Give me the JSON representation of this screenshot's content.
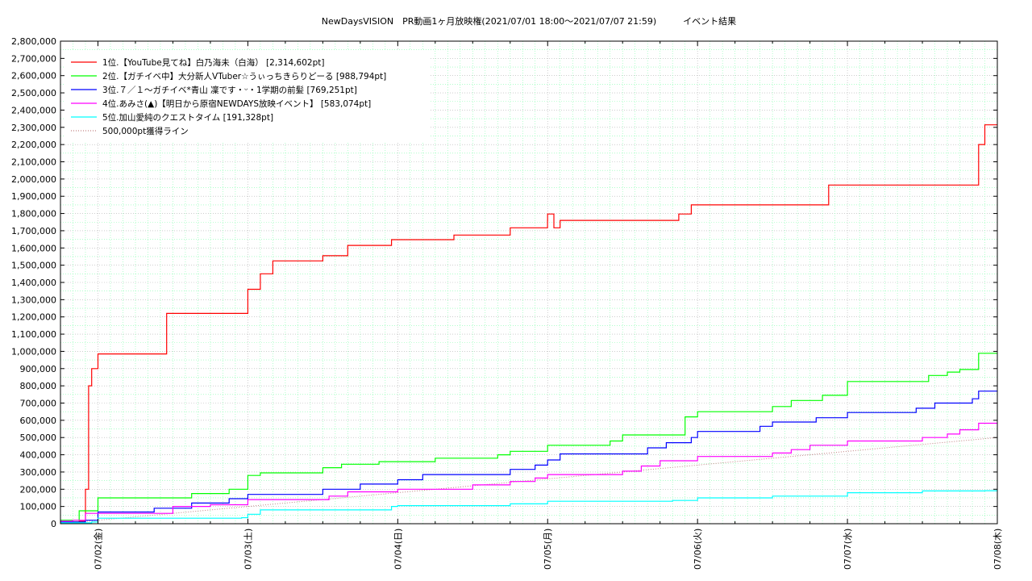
{
  "chart_data": {
    "type": "line",
    "title": "NewDaysVISION　PR動画1ヶ月放映権(2021/07/01 18:00〜2021/07/07 21:59)　　　イベント結果",
    "xlabel": "",
    "ylabel": "",
    "x_range": [
      "2021/07/01 18:00",
      "2021/07/08 00:00"
    ],
    "ylim": [
      0,
      2800000
    ],
    "y_tick_step": 100000,
    "y_ticks": [
      "0",
      "100,000",
      "200,000",
      "300,000",
      "400,000",
      "500,000",
      "600,000",
      "700,000",
      "800,000",
      "900,000",
      "1,000,000",
      "1,100,000",
      "1,200,000",
      "1,300,000",
      "1,400,000",
      "1,500,000",
      "1,600,000",
      "1,700,000",
      "1,800,000",
      "1,900,000",
      "2,000,000",
      "2,100,000",
      "2,200,000",
      "2,300,000",
      "2,400,000",
      "2,500,000",
      "2,600,000",
      "2,700,000",
      "2,800,000"
    ],
    "x_ticks": [
      {
        "date": "2021/07/02",
        "label": "07/02(金)"
      },
      {
        "date": "2021/07/03",
        "label": "07/03(土)"
      },
      {
        "date": "2021/07/04",
        "label": "07/04(日)"
      },
      {
        "date": "2021/07/05",
        "label": "07/05(月)"
      },
      {
        "date": "2021/07/06",
        "label": "07/06(火)"
      },
      {
        "date": "2021/07/07",
        "label": "07/07(水)"
      },
      {
        "date": "2021/07/08",
        "label": "07/08(木)"
      }
    ],
    "grid": true,
    "legend_position": "top-left",
    "series": [
      {
        "name": "1位.【YouTube見てね】白乃海未（白海） [2,314,602pt]",
        "color": "#ff0000",
        "points": [
          [
            "2021/07/01 18:00",
            10000
          ],
          [
            "2021/07/01 21:00",
            15000
          ],
          [
            "2021/07/01 22:00",
            200000
          ],
          [
            "2021/07/01 22:30",
            800000
          ],
          [
            "2021/07/01 23:00",
            900000
          ],
          [
            "2021/07/02 00:00",
            985000
          ],
          [
            "2021/07/02 10:00",
            985000
          ],
          [
            "2021/07/02 11:00",
            1220000
          ],
          [
            "2021/07/02 23:00",
            1220000
          ],
          [
            "2021/07/03 00:00",
            1360000
          ],
          [
            "2021/07/03 02:00",
            1450000
          ],
          [
            "2021/07/03 04:00",
            1525000
          ],
          [
            "2021/07/03 11:00",
            1525000
          ],
          [
            "2021/07/03 12:00",
            1555000
          ],
          [
            "2021/07/03 15:00",
            1555000
          ],
          [
            "2021/07/03 16:00",
            1615000
          ],
          [
            "2021/07/03 22:00",
            1615000
          ],
          [
            "2021/07/03 23:00",
            1648000
          ],
          [
            "2021/07/04 08:00",
            1648000
          ],
          [
            "2021/07/04 09:00",
            1675000
          ],
          [
            "2021/07/04 17:00",
            1675000
          ],
          [
            "2021/07/04 18:00",
            1717000
          ],
          [
            "2021/07/05 01:00",
            1717000
          ],
          [
            "2021/07/05 02:00",
            1760000
          ],
          [
            "2021/07/04 23:59",
            1760000
          ],
          [
            "2021/07/05 00:00",
            1797000
          ],
          [
            "2021/07/05 21:00",
            1797000
          ],
          [
            "2021/07/05 23:00",
            1850000
          ],
          [
            "2021/07/06 20:00",
            1850000
          ],
          [
            "2021/07/06 21:00",
            1965000
          ],
          [
            "2021/07/07 20:00",
            1965000
          ],
          [
            "2021/07/07 21:00",
            2200000
          ],
          [
            "2021/07/07 22:00",
            2314602
          ],
          [
            "2021/07/08 00:00",
            2314602
          ]
        ]
      },
      {
        "name": "2位.【ガチイベ中】大分新人VTuber☆うぃっちきらりどーる [988,794pt]",
        "color": "#00ff00",
        "points": [
          [
            "2021/07/01 18:00",
            20000
          ],
          [
            "2021/07/01 21:00",
            75000
          ],
          [
            "2021/07/02 00:00",
            150000
          ],
          [
            "2021/07/02 14:00",
            150000
          ],
          [
            "2021/07/02 15:00",
            175000
          ],
          [
            "2021/07/02 21:00",
            200000
          ],
          [
            "2021/07/03 00:00",
            280000
          ],
          [
            "2021/07/03 02:00",
            295000
          ],
          [
            "2021/07/03 11:00",
            295000
          ],
          [
            "2021/07/03 12:00",
            325000
          ],
          [
            "2021/07/03 15:00",
            345000
          ],
          [
            "2021/07/03 21:00",
            360000
          ],
          [
            "2021/07/04 06:00",
            380000
          ],
          [
            "2021/07/04 16:00",
            400000
          ],
          [
            "2021/07/04 18:00",
            420000
          ],
          [
            "2021/07/05 00:00",
            455000
          ],
          [
            "2021/07/05 09:00",
            455000
          ],
          [
            "2021/07/05 10:00",
            480000
          ],
          [
            "2021/07/05 12:00",
            515000
          ],
          [
            "2021/07/05 21:00",
            515000
          ],
          [
            "2021/07/05 22:00",
            620000
          ],
          [
            "2021/07/06 00:00",
            650000
          ],
          [
            "2021/07/06 11:00",
            650000
          ],
          [
            "2021/07/06 12:00",
            680000
          ],
          [
            "2021/07/06 15:00",
            715000
          ],
          [
            "2021/07/06 20:00",
            745000
          ],
          [
            "2021/07/07 00:00",
            825000
          ],
          [
            "2021/07/07 12:00",
            825000
          ],
          [
            "2021/07/07 13:00",
            860000
          ],
          [
            "2021/07/07 16:00",
            880000
          ],
          [
            "2021/07/07 18:00",
            895000
          ],
          [
            "2021/07/07 21:00",
            988794
          ],
          [
            "2021/07/08 00:00",
            988794
          ]
        ]
      },
      {
        "name": "3位.７／１〜ガチイベ*青山 凜です・ᵕ・1学期の前髪 [769,251pt]",
        "color": "#0000ff",
        "points": [
          [
            "2021/07/01 18:00",
            10000
          ],
          [
            "2021/07/01 22:00",
            20000
          ],
          [
            "2021/07/02 00:00",
            68000
          ],
          [
            "2021/07/02 08:00",
            68000
          ],
          [
            "2021/07/02 09:00",
            90000
          ],
          [
            "2021/07/02 15:00",
            120000
          ],
          [
            "2021/07/02 21:00",
            145000
          ],
          [
            "2021/07/03 00:00",
            170000
          ],
          [
            "2021/07/03 11:00",
            170000
          ],
          [
            "2021/07/03 12:00",
            200000
          ],
          [
            "2021/07/03 18:00",
            230000
          ],
          [
            "2021/07/04 00:00",
            255000
          ],
          [
            "2021/07/04 04:00",
            285000
          ],
          [
            "2021/07/04 16:00",
            285000
          ],
          [
            "2021/07/04 18:00",
            315000
          ],
          [
            "2021/07/04 22:00",
            340000
          ],
          [
            "2021/07/05 00:00",
            370000
          ],
          [
            "2021/07/05 02:00",
            405000
          ],
          [
            "2021/07/05 15:00",
            405000
          ],
          [
            "2021/07/05 16:00",
            440000
          ],
          [
            "2021/07/05 19:00",
            470000
          ],
          [
            "2021/07/05 23:00",
            500000
          ],
          [
            "2021/07/06 00:00",
            535000
          ],
          [
            "2021/07/06 09:00",
            535000
          ],
          [
            "2021/07/06 10:00",
            565000
          ],
          [
            "2021/07/06 12:00",
            590000
          ],
          [
            "2021/07/06 19:00",
            615000
          ],
          [
            "2021/07/07 00:00",
            645000
          ],
          [
            "2021/07/07 10:00",
            645000
          ],
          [
            "2021/07/07 11:00",
            670000
          ],
          [
            "2021/07/07 14:00",
            700000
          ],
          [
            "2021/07/07 20:00",
            725000
          ],
          [
            "2021/07/07 21:00",
            769251
          ],
          [
            "2021/07/08 00:00",
            769251
          ]
        ]
      },
      {
        "name": "4位.あみさ(▲)【明日から原宿NEWDAYS放映イベント】 [583,074pt]",
        "color": "#ff00ff",
        "points": [
          [
            "2021/07/01 18:00",
            15000
          ],
          [
            "2021/07/01 20:00",
            20000
          ],
          [
            "2021/07/01 22:00",
            60000
          ],
          [
            "2021/07/02 08:00",
            60000
          ],
          [
            "2021/07/02 12:00",
            100000
          ],
          [
            "2021/07/02 18:00",
            110000
          ],
          [
            "2021/07/03 00:00",
            140000
          ],
          [
            "2021/07/03 13:00",
            160000
          ],
          [
            "2021/07/03 16:00",
            185000
          ],
          [
            "2021/07/04 00:00",
            200000
          ],
          [
            "2021/07/04 10:00",
            200000
          ],
          [
            "2021/07/04 12:00",
            225000
          ],
          [
            "2021/07/04 18:00",
            245000
          ],
          [
            "2021/07/04 22:00",
            265000
          ],
          [
            "2021/07/05 00:00",
            285000
          ],
          [
            "2021/07/05 10:00",
            285000
          ],
          [
            "2021/07/05 12:00",
            305000
          ],
          [
            "2021/07/05 15:00",
            335000
          ],
          [
            "2021/07/05 18:00",
            365000
          ],
          [
            "2021/07/06 00:00",
            390000
          ],
          [
            "2021/07/06 10:00",
            390000
          ],
          [
            "2021/07/06 12:00",
            410000
          ],
          [
            "2021/07/06 15:00",
            430000
          ],
          [
            "2021/07/06 18:00",
            455000
          ],
          [
            "2021/07/07 00:00",
            480000
          ],
          [
            "2021/07/07 10:00",
            480000
          ],
          [
            "2021/07/07 12:00",
            500000
          ],
          [
            "2021/07/07 16:00",
            520000
          ],
          [
            "2021/07/07 18:00",
            545000
          ],
          [
            "2021/07/07 21:00",
            583074
          ],
          [
            "2021/07/08 00:00",
            583074
          ]
        ]
      },
      {
        "name": "5位.加山愛純のクエストタイム [191,328pt]",
        "color": "#00ffff",
        "points": [
          [
            "2021/07/01 18:00",
            5000
          ],
          [
            "2021/07/01 23:00",
            10000
          ],
          [
            "2021/07/02 00:00",
            32000
          ],
          [
            "2021/07/02 23:00",
            35000
          ],
          [
            "2021/07/03 00:00",
            55000
          ],
          [
            "2021/07/03 02:00",
            80000
          ],
          [
            "2021/07/03 20:00",
            80000
          ],
          [
            "2021/07/03 23:00",
            100000
          ],
          [
            "2021/07/04 00:00",
            105000
          ],
          [
            "2021/07/04 18:00",
            115000
          ],
          [
            "2021/07/05 00:00",
            130000
          ],
          [
            "2021/07/05 20:00",
            135000
          ],
          [
            "2021/07/06 00:00",
            150000
          ],
          [
            "2021/07/06 12:00",
            160000
          ],
          [
            "2021/07/07 00:00",
            180000
          ],
          [
            "2021/07/07 12:00",
            190000
          ],
          [
            "2021/07/07 22:00",
            191328
          ],
          [
            "2021/07/08 00:00",
            191328
          ]
        ]
      }
    ],
    "reference_line": {
      "name": "500,000pt獲得ライン",
      "color": "#c08080",
      "points": [
        [
          "2021/07/01 18:00",
          0
        ],
        [
          "2021/07/08 00:00",
          500000
        ]
      ]
    }
  }
}
